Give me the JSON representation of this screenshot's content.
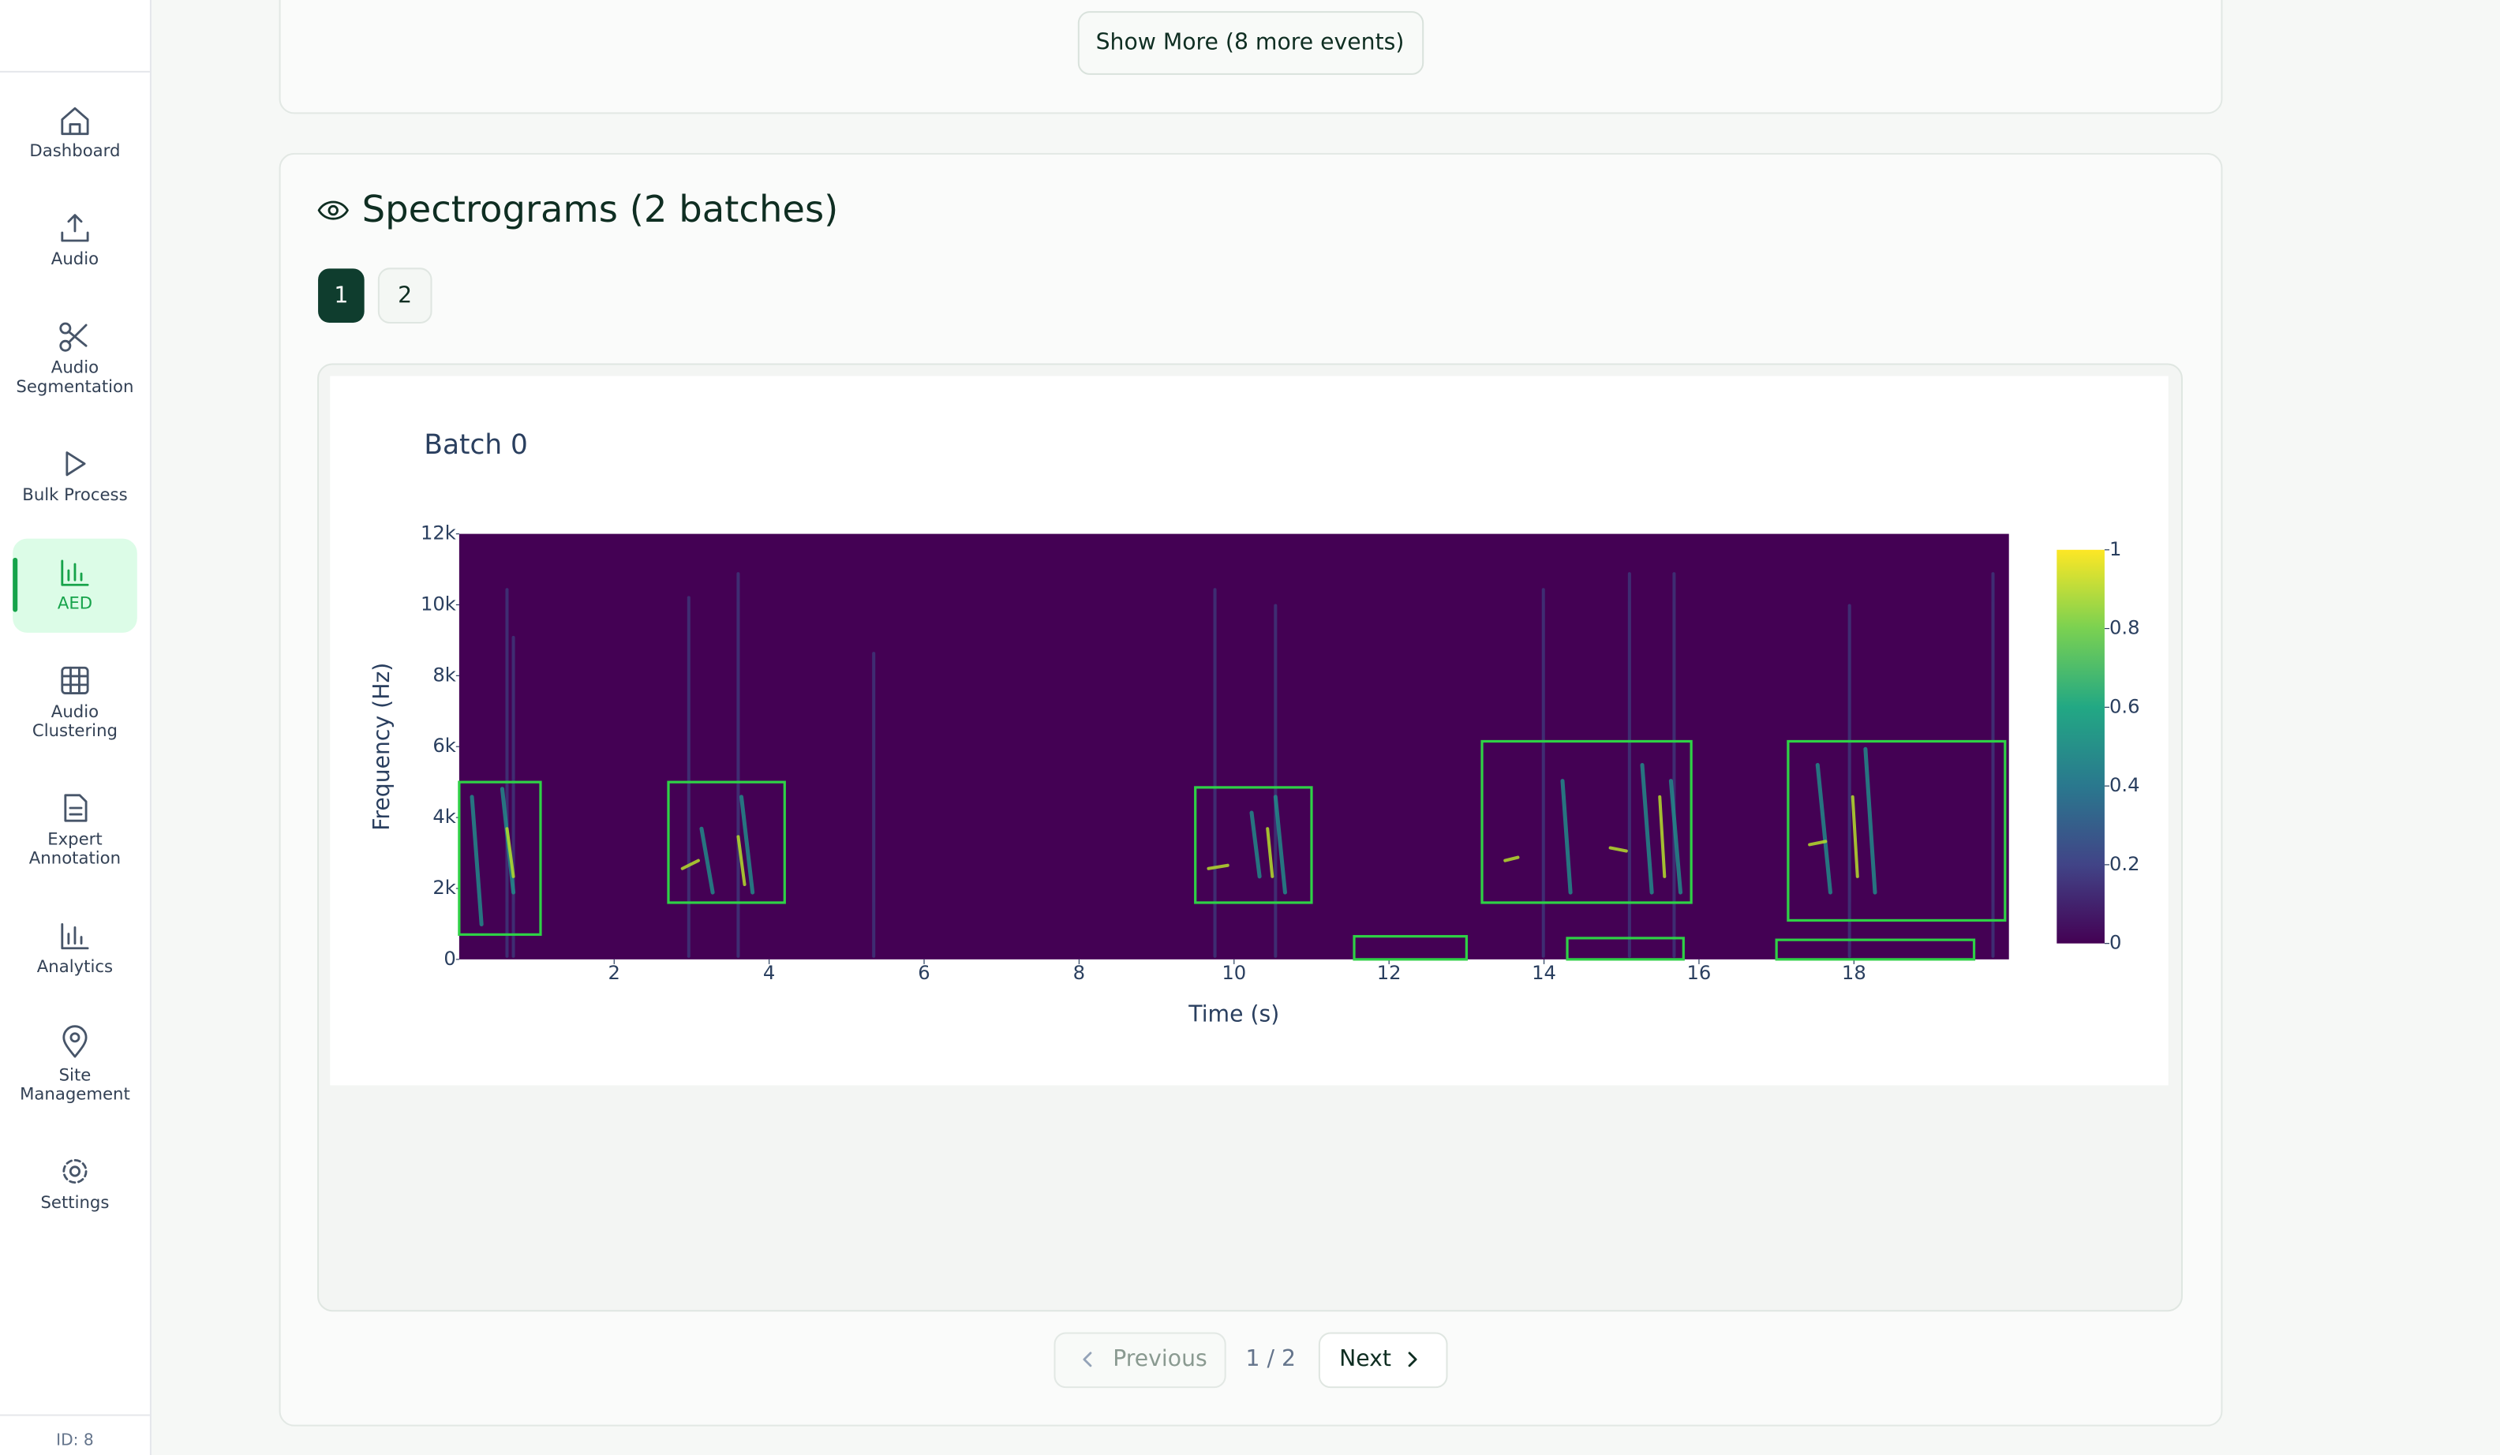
{
  "sidebar": {
    "items": [
      [
        "Dashboard"
      ],
      [
        "Audio"
      ],
      [
        "Audio",
        "Segmentation"
      ],
      [
        "Bulk Process"
      ],
      [
        "AED"
      ],
      [
        "Audio",
        "Clustering"
      ],
      [
        "Expert",
        "Annotation"
      ],
      [
        "Analytics"
      ],
      [
        "Site",
        "Management"
      ],
      [
        "Settings"
      ]
    ],
    "footer": "ID: 8"
  },
  "events": {
    "show_more": "Show More (8 more events)"
  },
  "spectrograms": {
    "title": "Spectrograms (2 batches)",
    "tabs": [
      "1",
      "2"
    ],
    "pagination": {
      "previous": "Previous",
      "page": "1 / 2",
      "next": "Next"
    }
  },
  "chart_data": {
    "type": "spectrogram",
    "title": "Batch 0",
    "x_label": "Time (s)",
    "y_label": "Frequency (Hz)",
    "xlim": [
      0,
      20
    ],
    "xticks": [
      2,
      4,
      6,
      8,
      10,
      12,
      14,
      16,
      18
    ],
    "ylim": [
      0,
      12000
    ],
    "yticks": [
      0,
      {
        "value": 2000,
        "label": "2k"
      },
      {
        "value": 4000,
        "label": "4k"
      },
      {
        "value": 6000,
        "label": "6k"
      },
      {
        "value": 8000,
        "label": "8k"
      },
      {
        "value": 10000,
        "label": "10k"
      },
      {
        "value": 12000,
        "label": "12k"
      }
    ],
    "colorbar": {
      "lim": [
        0,
        1
      ],
      "ticks": [
        0,
        0.2,
        0.4,
        0.6,
        0.8,
        1
      ]
    },
    "box_color": "#2fd146",
    "boxes": [
      {
        "t0": 0,
        "t1": 1.05,
        "f0": 700,
        "f1": 5000
      },
      {
        "t0": 2.7,
        "t1": 4.2,
        "f0": 1600,
        "f1": 5000
      },
      {
        "t0": 9.5,
        "t1": 11,
        "f0": 1600,
        "f1": 4850
      },
      {
        "t0": 11.55,
        "t1": 13,
        "f0": 0,
        "f1": 650
      },
      {
        "t0": 13.2,
        "t1": 15.9,
        "f0": 1600,
        "f1": 6150
      },
      {
        "t0": 14.3,
        "t1": 15.8,
        "f0": 0,
        "f1": 600
      },
      {
        "t0": 17.15,
        "t1": 19.95,
        "f0": 1100,
        "f1": 6150
      },
      {
        "t0": 17,
        "t1": 19.55,
        "f0": 0,
        "f1": 550
      }
    ]
  }
}
